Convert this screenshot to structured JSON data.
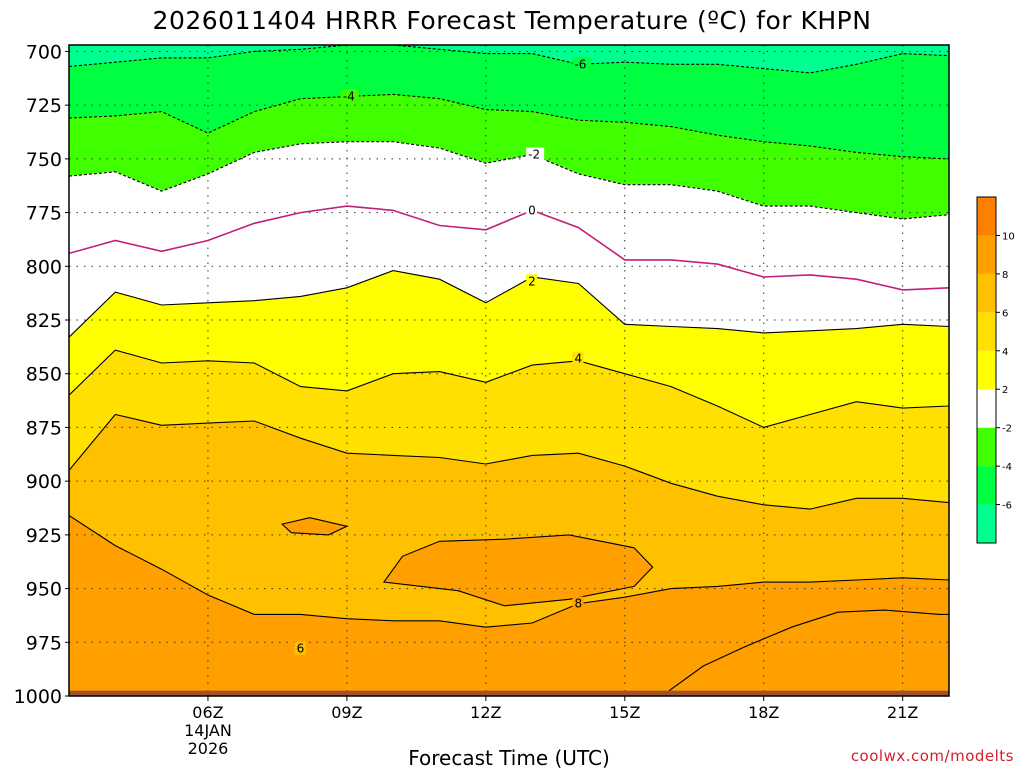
{
  "chart_data": {
    "type": "heatmap",
    "title": "2026011404 HRRR Forecast Temperature (ºC) for KHPN",
    "xlabel": "Forecast Time (UTC)",
    "credit": "coolwx.com/modelts",
    "x_hours": [
      3,
      22
    ],
    "xticks": [
      {
        "hour": 6,
        "label": "06Z",
        "sub1": "14JAN",
        "sub2": "2026"
      },
      {
        "hour": 9,
        "label": "09Z"
      },
      {
        "hour": 12,
        "label": "12Z"
      },
      {
        "hour": 15,
        "label": "15Z"
      },
      {
        "hour": 18,
        "label": "18Z"
      },
      {
        "hour": 21,
        "label": "21Z"
      }
    ],
    "y_pressure_hpa": [
      697,
      1000
    ],
    "yticks": [
      "700",
      "725",
      "750",
      "775",
      "800",
      "825",
      "850",
      "875",
      "900",
      "925",
      "950",
      "975",
      "1000"
    ],
    "colorbar": {
      "levels": [
        -8,
        -6,
        -4,
        -2,
        2,
        4,
        6,
        8,
        10,
        12
      ],
      "colors": [
        "#00ff90",
        "#00ff40",
        "#40ff00",
        "#ffffff",
        "#ffff00",
        "#ffe000",
        "#ffc000",
        "#ffa000",
        "#ff8000"
      ],
      "tick_labels": [
        "-6",
        "-4",
        "-2",
        "2",
        "4",
        "6",
        "8",
        "10"
      ],
      "tick_values": [
        -6,
        -4,
        -2,
        2,
        4,
        6,
        8,
        10
      ]
    },
    "isotherms": [
      {
        "value": -6,
        "label": "-6",
        "label_at": [
          14,
          706
        ],
        "color": "#000000",
        "dashed": true,
        "points": [
          [
            3,
            707
          ],
          [
            4,
            705
          ],
          [
            5,
            703
          ],
          [
            6,
            703
          ],
          [
            7,
            700
          ],
          [
            8,
            699
          ],
          [
            9,
            697
          ],
          [
            10,
            697
          ],
          [
            11,
            699
          ],
          [
            12,
            701
          ],
          [
            13,
            701
          ],
          [
            14,
            706
          ],
          [
            15,
            705
          ],
          [
            16,
            706
          ],
          [
            17,
            706
          ],
          [
            18,
            708
          ],
          [
            19,
            710
          ],
          [
            20,
            706
          ],
          [
            21,
            701
          ],
          [
            22,
            702
          ]
        ]
      },
      {
        "value": -4,
        "label": "-4",
        "label_at": [
          9,
          721
        ],
        "color": "#000000",
        "dashed": true,
        "points": [
          [
            3,
            731
          ],
          [
            4,
            730
          ],
          [
            5,
            728
          ],
          [
            6,
            738
          ],
          [
            7,
            728
          ],
          [
            8,
            722
          ],
          [
            9,
            721
          ],
          [
            10,
            720
          ],
          [
            11,
            722
          ],
          [
            12,
            727
          ],
          [
            13,
            728
          ],
          [
            14,
            732
          ],
          [
            15,
            733
          ],
          [
            16,
            735
          ],
          [
            17,
            739
          ],
          [
            18,
            742
          ],
          [
            19,
            744
          ],
          [
            20,
            747
          ],
          [
            21,
            749
          ],
          [
            22,
            750
          ]
        ]
      },
      {
        "value": -2,
        "label": "-2",
        "label_at": [
          13,
          748
        ],
        "color": "#000000",
        "dashed": true,
        "points": [
          [
            3,
            758
          ],
          [
            4,
            756
          ],
          [
            5,
            765
          ],
          [
            6,
            757
          ],
          [
            7,
            747
          ],
          [
            8,
            743
          ],
          [
            9,
            742
          ],
          [
            10,
            742
          ],
          [
            11,
            745
          ],
          [
            12,
            752
          ],
          [
            13,
            748
          ],
          [
            14,
            757
          ],
          [
            15,
            762
          ],
          [
            16,
            762
          ],
          [
            17,
            765
          ],
          [
            18,
            772
          ],
          [
            19,
            772
          ],
          [
            20,
            775
          ],
          [
            21,
            778
          ],
          [
            22,
            776
          ]
        ]
      },
      {
        "value": 0,
        "label": "0",
        "label_at": [
          13,
          774
        ],
        "color": "#c0207a",
        "dashed": false,
        "points": [
          [
            3,
            794
          ],
          [
            4,
            788
          ],
          [
            5,
            793
          ],
          [
            6,
            788
          ],
          [
            7,
            780
          ],
          [
            8,
            775
          ],
          [
            9,
            772
          ],
          [
            10,
            774
          ],
          [
            11,
            781
          ],
          [
            12,
            783
          ],
          [
            13,
            774
          ],
          [
            14,
            782
          ],
          [
            15,
            797
          ],
          [
            16,
            797
          ],
          [
            17,
            799
          ],
          [
            18,
            805
          ],
          [
            19,
            804
          ],
          [
            20,
            806
          ],
          [
            21,
            811
          ],
          [
            22,
            810
          ]
        ]
      },
      {
        "value": 2,
        "label": "2",
        "label_at": [
          13,
          807
        ],
        "color": "#000000",
        "dashed": false,
        "points": [
          [
            3,
            833
          ],
          [
            4,
            812
          ],
          [
            5,
            818
          ],
          [
            6,
            817
          ],
          [
            7,
            816
          ],
          [
            8,
            814
          ],
          [
            9,
            810
          ],
          [
            10,
            802
          ],
          [
            11,
            806
          ],
          [
            12,
            817
          ],
          [
            13,
            805
          ],
          [
            14,
            808
          ],
          [
            15,
            827
          ],
          [
            16,
            828
          ],
          [
            17,
            829
          ],
          [
            18,
            831
          ],
          [
            19,
            830
          ],
          [
            20,
            829
          ],
          [
            21,
            827
          ],
          [
            22,
            828
          ]
        ]
      },
      {
        "value": 4,
        "label": "4",
        "label_at": [
          14,
          843
        ],
        "color": "#000000",
        "dashed": false,
        "points": [
          [
            3,
            860
          ],
          [
            4,
            839
          ],
          [
            5,
            845
          ],
          [
            6,
            844
          ],
          [
            7,
            845
          ],
          [
            8,
            856
          ],
          [
            9,
            858
          ],
          [
            10,
            850
          ],
          [
            11,
            849
          ],
          [
            12,
            854
          ],
          [
            13,
            846
          ],
          [
            14,
            844
          ],
          [
            15,
            850
          ],
          [
            16,
            856
          ],
          [
            17,
            865
          ],
          [
            18,
            875
          ],
          [
            19,
            869
          ],
          [
            20,
            863
          ],
          [
            21,
            866
          ],
          [
            22,
            865
          ]
        ]
      },
      {
        "value": 6,
        "label": "6",
        "label_at": [
          8,
          978
        ],
        "color": "#000000",
        "dashed": false,
        "points": [
          [
            3,
            895
          ],
          [
            4,
            869
          ],
          [
            5,
            874
          ],
          [
            6,
            873
          ],
          [
            7,
            872
          ],
          [
            8,
            880
          ],
          [
            9,
            887
          ],
          [
            10,
            888
          ],
          [
            11,
            889
          ],
          [
            12,
            892
          ],
          [
            13,
            888
          ],
          [
            14,
            887
          ],
          [
            15,
            893
          ],
          [
            16,
            901
          ],
          [
            17,
            907
          ],
          [
            18,
            911
          ],
          [
            19,
            913
          ],
          [
            20,
            908
          ],
          [
            21,
            908
          ],
          [
            22,
            910
          ]
        ]
      },
      {
        "value": 8,
        "label": "8",
        "label_at": [
          14,
          957
        ],
        "color": "#000000",
        "dashed": false,
        "points": [
          [
            3,
            916
          ],
          [
            4,
            930
          ],
          [
            5,
            941
          ],
          [
            6,
            953
          ],
          [
            7,
            962
          ],
          [
            8,
            962
          ],
          [
            9,
            964
          ],
          [
            10,
            965
          ],
          [
            11,
            965
          ],
          [
            12,
            968
          ],
          [
            13,
            966
          ],
          [
            14,
            957
          ],
          [
            15,
            954
          ],
          [
            16,
            950
          ],
          [
            17,
            949
          ],
          [
            18,
            947
          ],
          [
            19,
            947
          ],
          [
            20,
            946
          ],
          [
            21,
            945
          ],
          [
            22,
            946
          ]
        ]
      }
    ],
    "warm_pockets": [
      {
        "value": 8,
        "points": [
          [
            7.6,
            920
          ],
          [
            8.2,
            917
          ],
          [
            9,
            921
          ],
          [
            8.6,
            925
          ],
          [
            7.8,
            924
          ]
        ]
      },
      {
        "value": 8,
        "points": [
          [
            9.8,
            947
          ],
          [
            10.2,
            935
          ],
          [
            11,
            928
          ],
          [
            12.4,
            927
          ],
          [
            13.8,
            925
          ],
          [
            15.2,
            931
          ],
          [
            15.6,
            940
          ],
          [
            15.2,
            949
          ],
          [
            13.8,
            955
          ],
          [
            12.4,
            958
          ],
          [
            11.4,
            951
          ]
        ]
      }
    ],
    "surface_warm_region": {
      "value": 10,
      "points": [
        [
          15.8,
          1000
        ],
        [
          16.7,
          986
        ],
        [
          17.6,
          977
        ],
        [
          18.6,
          968
        ],
        [
          19.6,
          961
        ],
        [
          20.6,
          960
        ],
        [
          21.8,
          962
        ],
        [
          22,
          962
        ],
        [
          22,
          1000
        ]
      ]
    }
  }
}
